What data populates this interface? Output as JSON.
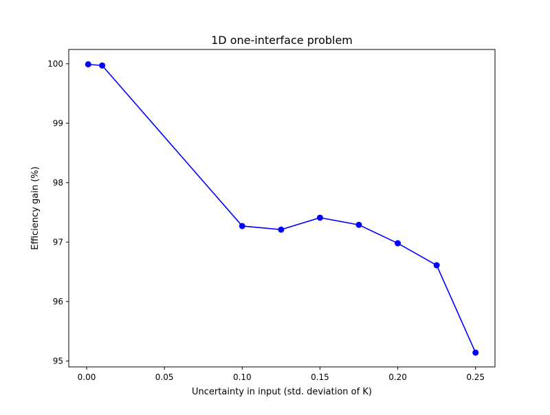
{
  "chart_data": {
    "type": "line",
    "title": "1D one-interface problem",
    "xlabel": "Uncertainty in input (std. deviation of K)",
    "ylabel": "Efficiency gain (%)",
    "xlim": [
      -0.0115,
      0.2625
    ],
    "ylim": [
      94.9,
      100.24
    ],
    "xticks": [
      0.0,
      0.05,
      0.1,
      0.15,
      0.2,
      0.25
    ],
    "xtick_labels": [
      "0.00",
      "0.05",
      "0.10",
      "0.15",
      "0.20",
      "0.25"
    ],
    "yticks": [
      95,
      96,
      97,
      98,
      99,
      100
    ],
    "ytick_labels": [
      "95",
      "96",
      "97",
      "98",
      "99",
      "100"
    ],
    "grid": false,
    "series": [
      {
        "color": "#0000ff",
        "marker": "circle",
        "x": [
          0.001,
          0.01,
          0.1,
          0.125,
          0.15,
          0.175,
          0.2,
          0.225,
          0.25
        ],
        "y": [
          99.99,
          99.97,
          97.27,
          97.21,
          97.41,
          97.29,
          96.98,
          96.61,
          95.14
        ]
      }
    ]
  }
}
